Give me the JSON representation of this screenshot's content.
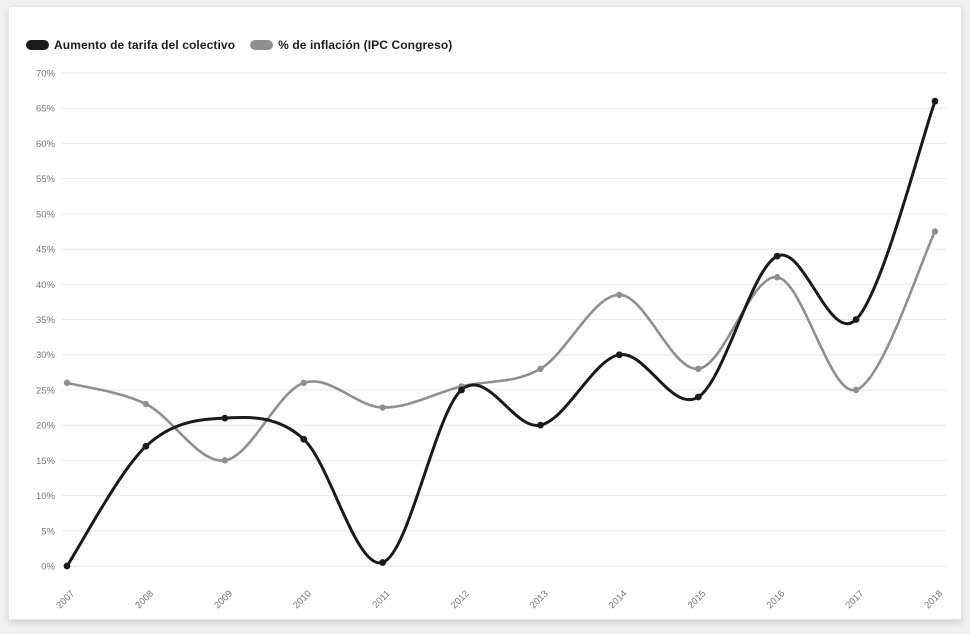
{
  "page": {
    "background": "#f1f1f2"
  },
  "legend": {
    "items": [
      {
        "label": "Aumento de tarifa del colectivo",
        "color": "#1a1a1a"
      },
      {
        "label": "% de inflación (IPC Congreso)",
        "color": "#8f8f8f"
      }
    ]
  },
  "chart_data": {
    "type": "line",
    "title": "",
    "xlabel": "",
    "ylabel": "",
    "categories": [
      "2007",
      "2008",
      "2009",
      "2010",
      "2011",
      "2012",
      "2013",
      "2014",
      "2015",
      "2016",
      "2017",
      "2018"
    ],
    "series": [
      {
        "name": "Aumento de tarifa del colectivo",
        "color": "#1a1a1a",
        "line_width": 3,
        "marker_radius": 3.4,
        "values": [
          0,
          17,
          21,
          18,
          0.5,
          25,
          20,
          30,
          24,
          44,
          35,
          66
        ]
      },
      {
        "name": "% de inflación (IPC Congreso)",
        "color": "#8f8f8f",
        "line_width": 2.6,
        "marker_radius": 3.2,
        "values": [
          26,
          23,
          15,
          26,
          22.5,
          25.5,
          28,
          38.5,
          28,
          41,
          25,
          47.5
        ]
      }
    ],
    "ylim": [
      0,
      70
    ],
    "y_tick_step": 5,
    "y_ticks": [
      "0%",
      "5%",
      "10%",
      "15%",
      "20%",
      "25%",
      "30%",
      "35%",
      "40%",
      "45%",
      "50%",
      "55%",
      "60%",
      "65%",
      "70%"
    ],
    "grid": "horizontal",
    "grid_color": "#e8e8e8",
    "legend_position": "top-left",
    "x_label_rotation": -45,
    "curve": "smooth"
  }
}
